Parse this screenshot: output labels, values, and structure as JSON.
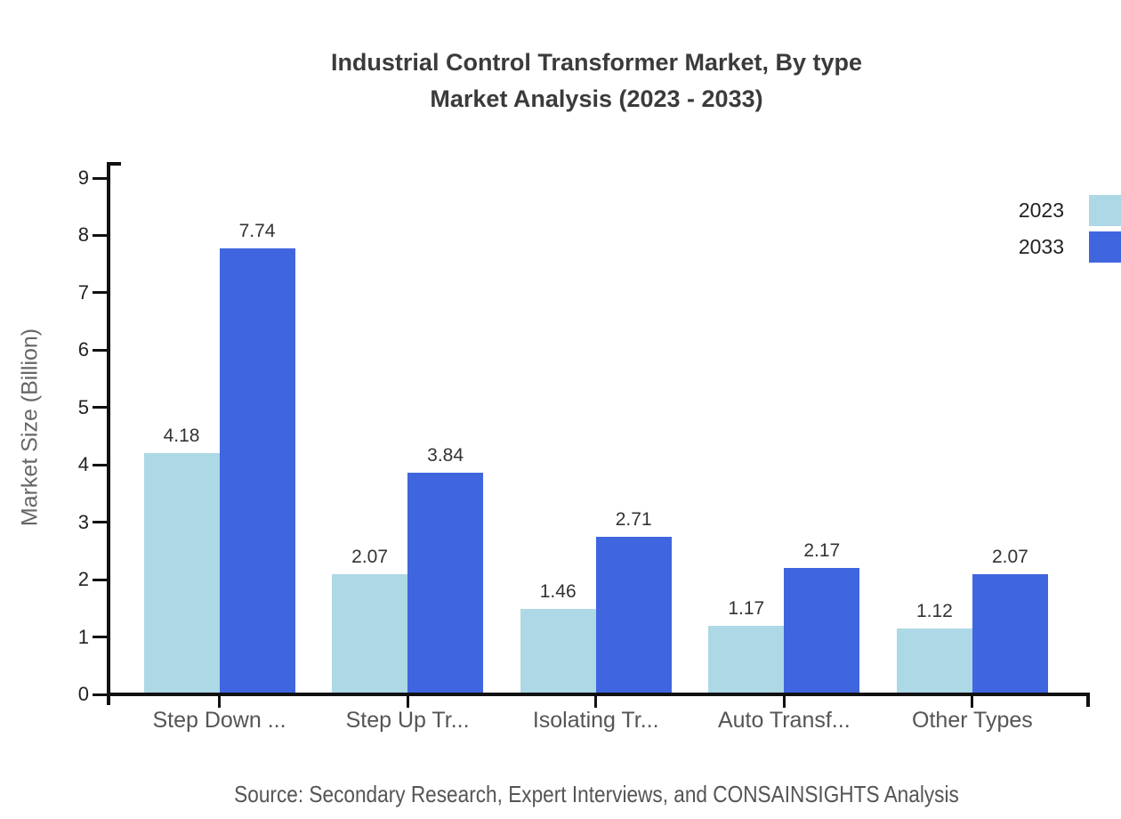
{
  "title": {
    "line1": "Industrial Control Transformer Market, By type",
    "line2": "Market Analysis (2023 - 2033)"
  },
  "source": "Source: Secondary Research, Expert Interviews, and CONSAINSIGHTS Analysis",
  "colors": {
    "series_2023": "#ADD8E6",
    "series_2033": "#4066DF",
    "axis": "#111111"
  },
  "chart_data": {
    "type": "bar",
    "title": "Industrial Control Transformer Market, By type Market Analysis (2023 - 2033)",
    "categories": [
      "Step Down ...",
      "Step Up Tr...",
      "Isolating Tr...",
      "Auto Transf...",
      "Other Types"
    ],
    "series": [
      {
        "name": "2023",
        "color": "#ADD8E6",
        "values": [
          4.18,
          2.07,
          1.46,
          1.17,
          1.12
        ]
      },
      {
        "name": "2033",
        "color": "#4066DF",
        "values": [
          7.74,
          3.84,
          2.71,
          2.17,
          2.07
        ]
      }
    ],
    "xlabel": "",
    "ylabel": "Market Size (Billion)",
    "ylim": [
      0,
      9
    ],
    "yticks": [
      0,
      1,
      2,
      3,
      4,
      5,
      6,
      7,
      8,
      9
    ],
    "grid": false,
    "value_labels": true,
    "legend_position": "top-right"
  }
}
